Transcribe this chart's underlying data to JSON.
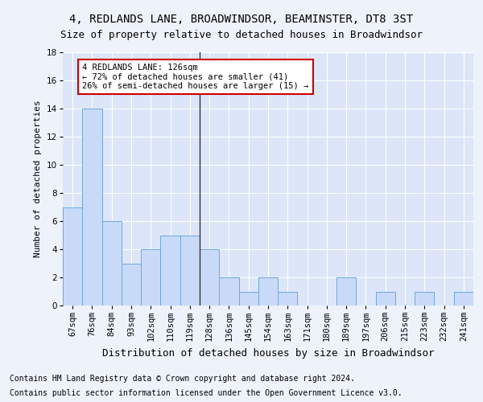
{
  "title": "4, REDLANDS LANE, BROADWINDSOR, BEAMINSTER, DT8 3ST",
  "subtitle": "Size of property relative to detached houses in Broadwindsor",
  "xlabel": "Distribution of detached houses by size in Broadwindsor",
  "ylabel": "Number of detached properties",
  "footnote1": "Contains HM Land Registry data © Crown copyright and database right 2024.",
  "footnote2": "Contains public sector information licensed under the Open Government Licence v3.0.",
  "categories": [
    "67sqm",
    "76sqm",
    "84sqm",
    "93sqm",
    "102sqm",
    "110sqm",
    "119sqm",
    "128sqm",
    "136sqm",
    "145sqm",
    "154sqm",
    "163sqm",
    "171sqm",
    "180sqm",
    "189sqm",
    "197sqm",
    "206sqm",
    "215sqm",
    "223sqm",
    "232sqm",
    "241sqm"
  ],
  "values": [
    7,
    14,
    6,
    3,
    4,
    5,
    5,
    4,
    2,
    1,
    2,
    1,
    0,
    0,
    2,
    0,
    1,
    0,
    1,
    0,
    1
  ],
  "bar_color": "#c9daf8",
  "bar_edge_color": "#6fa8dc",
  "subject_line_index": 7,
  "annotation_title": "4 REDLANDS LANE: 126sqm",
  "annotation_line1": "← 72% of detached houses are smaller (41)",
  "annotation_line2": "26% of semi-detached houses are larger (15) →",
  "annotation_box_color": "#ffffff",
  "annotation_box_edge_color": "#cc0000",
  "ylim": [
    0,
    18
  ],
  "yticks": [
    0,
    2,
    4,
    6,
    8,
    10,
    12,
    14,
    16,
    18
  ],
  "bg_color": "#eef2fb",
  "plot_bg_color": "#dce6f8",
  "grid_color": "#ffffff",
  "title_fontsize": 10,
  "subtitle_fontsize": 9,
  "xlabel_fontsize": 9,
  "ylabel_fontsize": 8,
  "tick_fontsize": 7.5,
  "annotation_fontsize": 7.5,
  "footnote_fontsize": 7
}
